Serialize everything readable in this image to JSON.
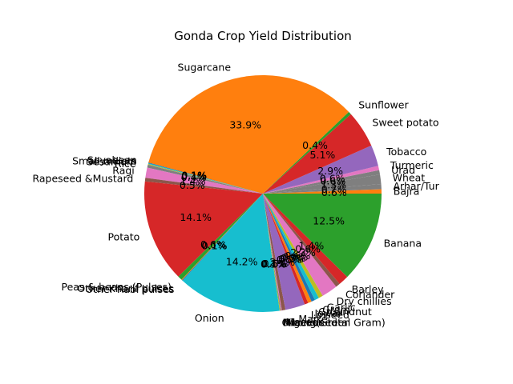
{
  "chart_data": {
    "type": "pie",
    "title": "Gonda Crop Yield Distribution",
    "start_angle_deg": 0,
    "direction": "counterclockwise",
    "slices": [
      {
        "label": "Bajra",
        "value": 0.6,
        "color": "#ff7f0e",
        "pct_text": "0.6%"
      },
      {
        "label": "Arhar/Tur",
        "value": 0.7,
        "color": "#7f7f7f",
        "pct_text": "0.7%"
      },
      {
        "label": "Wheat",
        "value": 1.3,
        "color": "#7f7f7f",
        "pct_text": "1.3%"
      },
      {
        "label": "Urad",
        "value": 0.6,
        "color": "#7f7f7f",
        "pct_text": "0.6%"
      },
      {
        "label": "Turmeric",
        "value": 0.6,
        "color": "#e377c2",
        "pct_text": "0.6%"
      },
      {
        "label": "Tobacco",
        "value": 2.9,
        "color": "#9467bd",
        "pct_text": "2.9%"
      },
      {
        "label": "Sweet potato",
        "value": 5.1,
        "color": "#d62728",
        "pct_text": "5.1%"
      },
      {
        "label": "Sunflower",
        "value": 0.4,
        "color": "#2ca02c",
        "pct_text": "0.4%"
      },
      {
        "label": "Sugarcane",
        "value": 33.9,
        "color": "#ff7f0e",
        "pct_text": "33.9%"
      },
      {
        "label": "Soyabean",
        "value": 0.1,
        "color": "#1f77b4",
        "pct_text": "0.1%"
      },
      {
        "label": "Small millets",
        "value": 0.1,
        "color": "#17becf",
        "pct_text": "0.1%"
      },
      {
        "label": "Sesamum",
        "value": 0.1,
        "color": "#bcbd22",
        "pct_text": "0.1%"
      },
      {
        "label": "Rice",
        "value": 0.4,
        "color": "#7f7f7f",
        "pct_text": "0.4%"
      },
      {
        "label": "Ragi",
        "value": 1.4,
        "color": "#e377c2",
        "pct_text": "1.4%"
      },
      {
        "label": "Rapeseed &Mustard",
        "value": 0.5,
        "color": "#8c564b",
        "pct_text": "0.5%"
      },
      {
        "label": "Potato",
        "value": 14.1,
        "color": "#d62728",
        "pct_text": "14.1%"
      },
      {
        "label": "Peas & beans (Pulses)",
        "value": 0.6,
        "color": "#2ca02c",
        "pct_text": "0.6%"
      },
      {
        "label": "Other Kharif pulses",
        "value": 0.1,
        "color": "#ff7f0e",
        "pct_text": "0.1%"
      },
      {
        "label": "Other Rabi pulses",
        "value": 0.1,
        "color": "#1f77b4",
        "pct_text": "0.1%"
      },
      {
        "label": "Onion",
        "value": 14.2,
        "color": "#17becf",
        "pct_text": "14.2%"
      },
      {
        "label": "Oilseeds total",
        "value": 0.1,
        "color": "#bcbd22",
        "pct_text": "0.1%"
      },
      {
        "label": "Moong(Green Gram)",
        "value": 0.1,
        "color": "#7f7f7f",
        "pct_text": "0.1%"
      },
      {
        "label": "Niger seed",
        "value": 0.1,
        "color": "#e377c2",
        "pct_text": "0.1%"
      },
      {
        "label": "Masoor",
        "value": 0.5,
        "color": "#8c564b",
        "pct_text": "0.5%"
      },
      {
        "label": "Maize",
        "value": 2.7,
        "color": "#9467bd",
        "pct_text": "2.7%"
      },
      {
        "label": "Linseed",
        "value": 0.5,
        "color": "#d62728",
        "pct_text": "0.5%"
      },
      {
        "label": "Jowar",
        "value": 0.5,
        "color": "#ff7f0e",
        "pct_text": "0.5%"
      },
      {
        "label": "Groundnut",
        "value": 0.5,
        "color": "#1f77b4",
        "pct_text": "0.5%"
      },
      {
        "label": "Gram",
        "value": 0.6,
        "color": "#17becf",
        "pct_text": "0.6%"
      },
      {
        "label": "Garlic",
        "value": 0.6,
        "color": "#bcbd22",
        "pct_text": "0.6%"
      },
      {
        "label": "Dry chillies",
        "value": 2.2,
        "color": "#e377c2",
        "pct_text": "2.2%"
      },
      {
        "label": "Coriander",
        "value": 0.6,
        "color": "#8c564b",
        "pct_text": "0.6%"
      },
      {
        "label": "Barley",
        "value": 1.4,
        "color": "#d62728",
        "pct_text": "1.4%"
      },
      {
        "label": "Banana",
        "value": 12.5,
        "color": "#2ca02c",
        "pct_text": "12.5%"
      }
    ]
  }
}
